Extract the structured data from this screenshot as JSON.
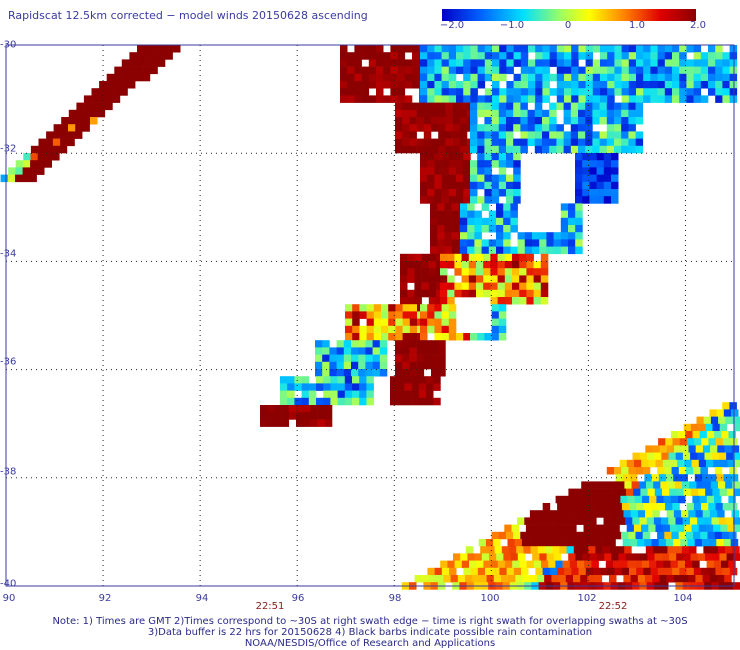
{
  "title": "Rapidscat 12.5km corrected − model winds 20150628 ascending",
  "colorbar": {
    "labels": [
      "−2.0",
      "−1.0",
      "0",
      "1.0",
      "2.0"
    ],
    "stops": [
      "#0000c8",
      "#0060ff",
      "#00e0ff",
      "#a0ff60",
      "#ffff00",
      "#ff8000",
      "#e00000",
      "#8b0000"
    ]
  },
  "axes": {
    "x_ticks": [
      "90",
      "92",
      "94",
      "96",
      "98",
      "100",
      "102",
      "104"
    ],
    "y_ticks": [
      "-30",
      "-32",
      "-34",
      "-36",
      "-38",
      "-40"
    ],
    "grid": "dotted"
  },
  "times": [
    {
      "label": "22:51",
      "lon": 96.2
    },
    {
      "label": "22:52",
      "lon": 102.5
    }
  ],
  "notes": [
    "Note: 1) Times are GMT 2)Times correspond to ~30S at right swath edge − time is right swath for overlapping swaths at ~30S",
    "3)Data buffer is 22 hrs for 20150628 4) Black barbs indicate possible rain contamination",
    "NOAA/NESDIS/Office of Research and Applications"
  ],
  "map_data": {
    "lon_range": [
      90,
      105
    ],
    "lat_range": [
      -40,
      -30
    ],
    "value_range": [
      -2.0,
      2.0
    ],
    "swaths": [
      {
        "lon_center": [
          93.2,
          -30
        ],
        "lat_end": -32.5,
        "note": "upper-left swath, mostly strongly positive"
      },
      {
        "note": "central swath 95.5-105E, -30 to -37.5, positive on west edge, negative (blue) in east"
      },
      {
        "note": "lower-right swath 98-105E, -37 to -40, positive south/west, mixed in northeast"
      }
    ]
  }
}
